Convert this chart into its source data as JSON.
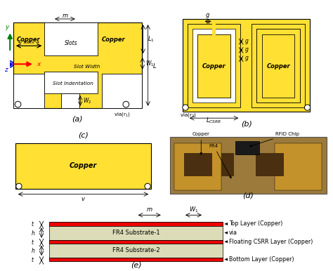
{
  "bg_color": "#ffffff",
  "yellow": "#FFE033",
  "red": "#EE0000",
  "gray_substrate": "#DCDCB8",
  "fig_label_fontsize": 8,
  "annotation_fontsize": 6.0,
  "subfig_labels": [
    "(a)",
    "(b)",
    "(c)",
    "(d)",
    "(e)"
  ]
}
